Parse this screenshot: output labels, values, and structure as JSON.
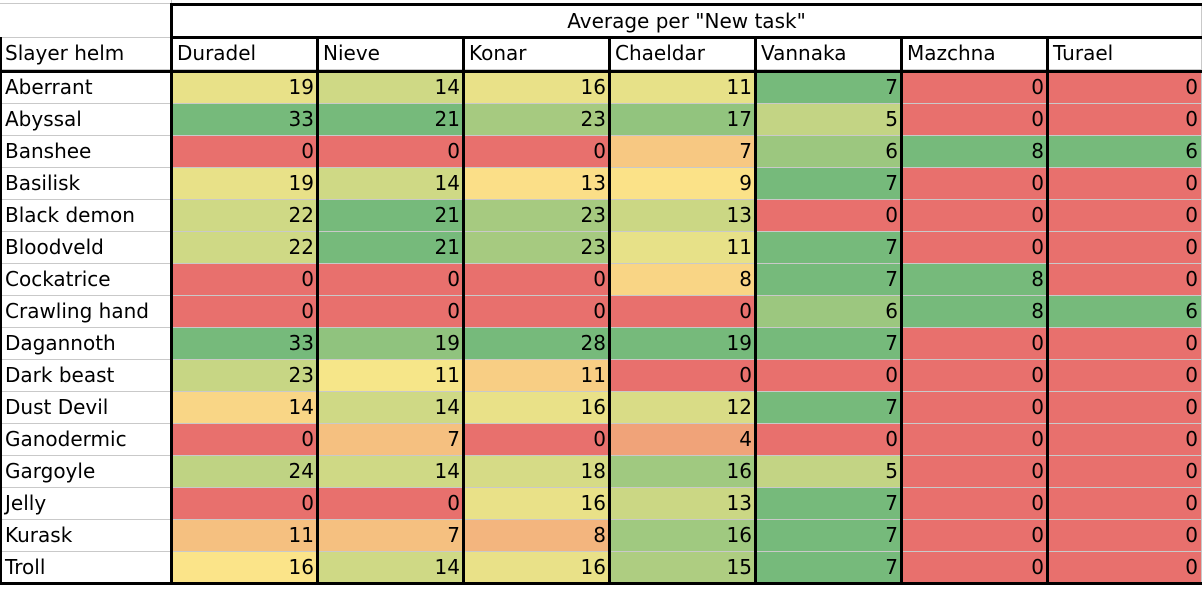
{
  "sheet": {
    "banner": "Average per \"New task\"",
    "row_header": "Slayer helm",
    "columns": [
      "Duradel",
      "Nieve",
      "Konar",
      "Chaeldar",
      "Vannaka",
      "Mazchna",
      "Turael"
    ],
    "rows": [
      {
        "label": "Aberrant",
        "values": [
          19,
          14,
          16,
          11,
          7,
          0,
          0
        ]
      },
      {
        "label": "Abyssal",
        "values": [
          33,
          21,
          23,
          17,
          5,
          0,
          0
        ]
      },
      {
        "label": "Banshee",
        "values": [
          0,
          0,
          0,
          7,
          6,
          8,
          6
        ]
      },
      {
        "label": "Basilisk",
        "values": [
          19,
          14,
          13,
          9,
          7,
          0,
          0
        ]
      },
      {
        "label": "Black demon",
        "values": [
          22,
          21,
          23,
          13,
          0,
          0,
          0
        ]
      },
      {
        "label": "Bloodveld",
        "values": [
          22,
          21,
          23,
          11,
          7,
          0,
          0
        ]
      },
      {
        "label": "Cockatrice",
        "values": [
          0,
          0,
          0,
          8,
          7,
          8,
          0
        ]
      },
      {
        "label": "Crawling hand",
        "values": [
          0,
          0,
          0,
          0,
          6,
          8,
          6
        ]
      },
      {
        "label": "Dagannoth",
        "values": [
          33,
          19,
          28,
          19,
          7,
          0,
          0
        ]
      },
      {
        "label": "Dark beast",
        "values": [
          23,
          11,
          11,
          0,
          0,
          0,
          0
        ]
      },
      {
        "label": "Dust Devil",
        "values": [
          14,
          14,
          16,
          12,
          7,
          0,
          0
        ]
      },
      {
        "label": "Ganodermic",
        "values": [
          0,
          7,
          0,
          4,
          0,
          0,
          0
        ]
      },
      {
        "label": "Gargoyle",
        "values": [
          24,
          14,
          18,
          16,
          5,
          0,
          0
        ]
      },
      {
        "label": "Jelly",
        "values": [
          0,
          0,
          16,
          13,
          7,
          0,
          0
        ]
      },
      {
        "label": "Kurask",
        "values": [
          11,
          7,
          8,
          16,
          7,
          0,
          0
        ]
      },
      {
        "label": "Troll",
        "values": [
          16,
          14,
          16,
          15,
          7,
          0,
          0
        ]
      }
    ],
    "scale_colors": {
      "low": "#e8706d",
      "mid": "#fce88a",
      "high": "#76ba7b"
    }
  }
}
